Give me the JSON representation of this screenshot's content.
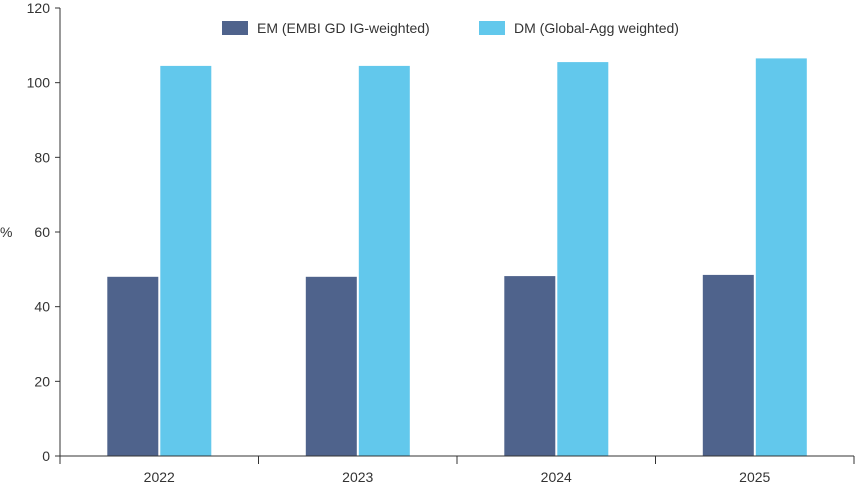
{
  "chart_data": {
    "type": "bar",
    "categories": [
      "2022",
      "2023",
      "2024",
      "2025"
    ],
    "series": [
      {
        "name": "EM (EMBI GD IG-weighted)",
        "values": [
          48.0,
          48.0,
          48.2,
          48.5
        ],
        "color": "#4f638c"
      },
      {
        "name": "DM (Global-Agg weighted)",
        "values": [
          104.5,
          104.5,
          105.5,
          106.5
        ],
        "color": "#62c8ec"
      }
    ],
    "ylabel": "%",
    "xlabel": "",
    "ylim": [
      0,
      120
    ],
    "yticks": [
      0,
      20,
      40,
      60,
      80,
      100,
      120
    ],
    "legend_position": "top-center",
    "grid": false
  }
}
